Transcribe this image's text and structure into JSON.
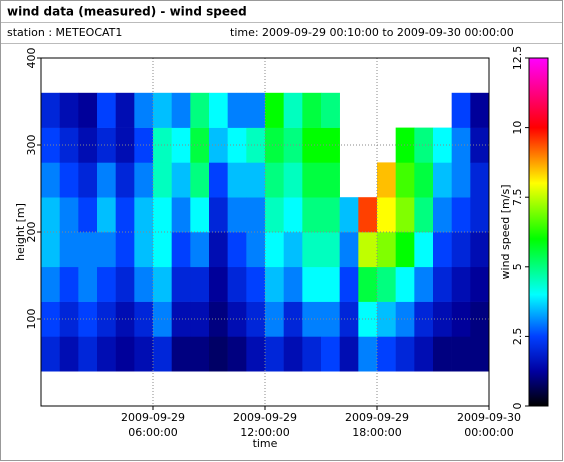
{
  "chart_data": {
    "type": "heatmap",
    "title": "wind data (measured) - wind speed",
    "station": "station : METEOCAT1",
    "period": "time: 2009-09-29 00:10:00 to 2009-09-30 00:00:00",
    "x_label": "time",
    "y_label": "height [m]",
    "colorbar_label": "wind speed [m/s]",
    "xlim": [
      0,
      24
    ],
    "xticks": [
      {
        "value": 6,
        "label": [
          "2009-09-29",
          "06:00:00"
        ]
      },
      {
        "value": 12,
        "label": [
          "2009-09-29",
          "12:00:00"
        ]
      },
      {
        "value": 18,
        "label": [
          "2009-09-29",
          "18:00:00"
        ]
      },
      {
        "value": 24,
        "label": [
          "2009-09-30",
          "00:00:00"
        ]
      }
    ],
    "ylim": [
      0,
      400
    ],
    "yticks": [
      100,
      200,
      300,
      400
    ],
    "clim": [
      0,
      12.5
    ],
    "cticks": [
      0,
      2.5,
      5,
      7.5,
      10,
      12.5
    ],
    "grid": true,
    "colormap": [
      {
        "stop": 0,
        "color": "#000000"
      },
      {
        "stop": 0.1,
        "color": "#0000a0"
      },
      {
        "stop": 0.2,
        "color": "#0040ff"
      },
      {
        "stop": 0.32,
        "color": "#00ffff"
      },
      {
        "stop": 0.48,
        "color": "#00ff00"
      },
      {
        "stop": 0.64,
        "color": "#ffff00"
      },
      {
        "stop": 0.8,
        "color": "#ff0000"
      },
      {
        "stop": 1,
        "color": "#ff00ff"
      }
    ],
    "x_edges": [
      0,
      1,
      2,
      3,
      4,
      5,
      6,
      7,
      8,
      9,
      10,
      11,
      12,
      13,
      14,
      15,
      16,
      17,
      18,
      19,
      20,
      21,
      22,
      23,
      24
    ],
    "y_edges": [
      40,
      80,
      120,
      160,
      200,
      240,
      280,
      320,
      360
    ],
    "values": [
      [
        2,
        2.5,
        3,
        3.5,
        3.5,
        3,
        2.5,
        2
      ],
      [
        1.5,
        2,
        2.5,
        3,
        3,
        2.5,
        2,
        1.5
      ],
      [
        2,
        2.5,
        3,
        3,
        2.5,
        2,
        1.5,
        1.2
      ],
      [
        1.5,
        2,
        2.5,
        3,
        3.5,
        3,
        2,
        2.5
      ],
      [
        1.2,
        1.5,
        2,
        2.5,
        2.5,
        2,
        1.5,
        1.5
      ],
      [
        1.5,
        2,
        3,
        3.5,
        3.5,
        3,
        2.5,
        3
      ],
      [
        2,
        3,
        3.5,
        4,
        4,
        4.5,
        4.5,
        3.5
      ],
      [
        1,
        1.5,
        2,
        2.5,
        3,
        3.5,
        4,
        3
      ],
      [
        1,
        1.5,
        2,
        3,
        4,
        5,
        5.5,
        5
      ],
      [
        0.8,
        1,
        1.2,
        1.5,
        2,
        2.5,
        3.5,
        4
      ],
      [
        1,
        1.5,
        2,
        2.5,
        3,
        3.5,
        4,
        3
      ],
      [
        1.5,
        2,
        2.5,
        3,
        3,
        3.5,
        4.5,
        3
      ],
      [
        2,
        3,
        3.5,
        4,
        4.5,
        5,
        5.5,
        6
      ],
      [
        1.5,
        2,
        3,
        3.5,
        4,
        4.5,
        5,
        4.5
      ],
      [
        2,
        3,
        4,
        4.5,
        5,
        5.5,
        6,
        5.5
      ],
      [
        2.5,
        3,
        4,
        4.5,
        5,
        5.5,
        6,
        5
      ],
      [
        1.5,
        2,
        2.5,
        3,
        3.5,
        null,
        null,
        null
      ],
      [
        3,
        4,
        5.5,
        7.5,
        9.5,
        null,
        null,
        null
      ],
      [
        2.5,
        3.5,
        5,
        7,
        8,
        8.5,
        null,
        null
      ],
      [
        2,
        3,
        4,
        6,
        7,
        6.5,
        6,
        null
      ],
      [
        1.5,
        2,
        3,
        4,
        5,
        5.5,
        5,
        null
      ],
      [
        1,
        1.5,
        2,
        2.5,
        3,
        3.5,
        4,
        null
      ],
      [
        1,
        1.2,
        1.5,
        2,
        2.5,
        3,
        3,
        2.5
      ],
      [
        1,
        1,
        1.2,
        1.5,
        2,
        2,
        1.5,
        1.2
      ]
    ]
  }
}
